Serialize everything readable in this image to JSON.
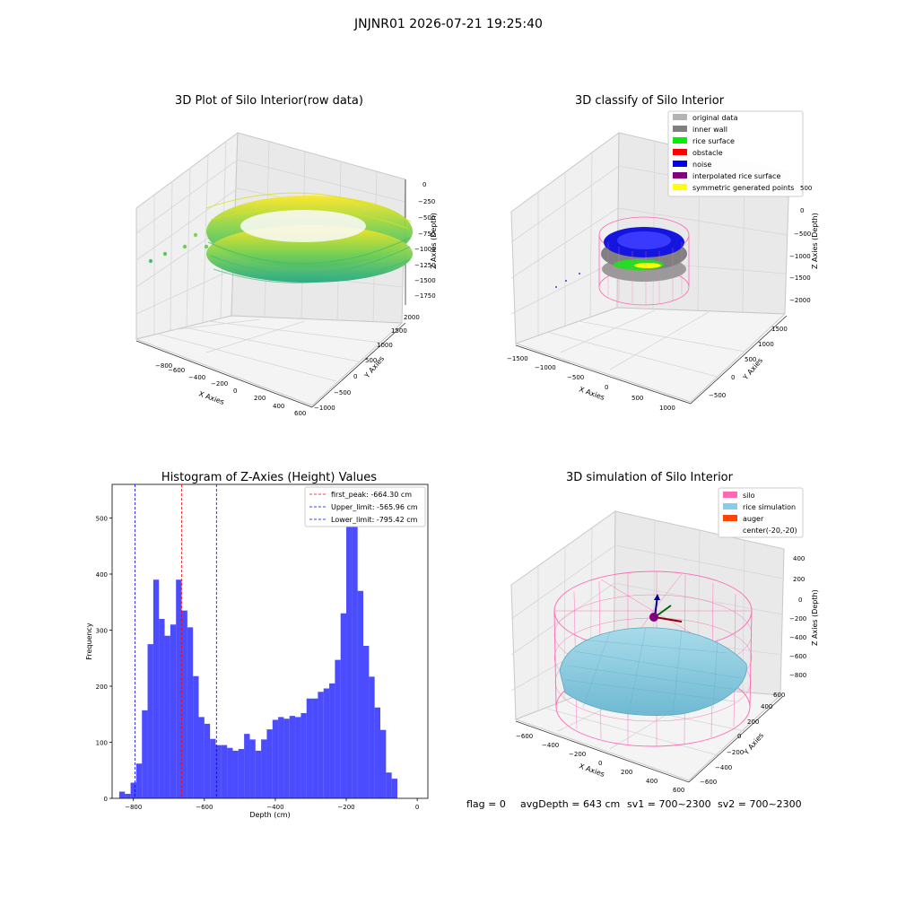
{
  "figure": {
    "suptitle": "JNJNR01 2026-07-21 19:25:40",
    "footer": {
      "flag": "flag = 0",
      "avg": "avgDepth = 643 cm",
      "sv1": "sv1 = 700~2300",
      "sv2": "sv2 = 700~2300"
    }
  },
  "chart_data": [
    {
      "type": "scatter",
      "projection": "3d",
      "title": "3D Plot of Silo Interior(row data)",
      "xlabel": "X Axies",
      "ylabel": "Y Axies",
      "zlabel": "Z Axies (Depth)",
      "xticks": [
        "−800",
        "−600",
        "−400",
        "−200",
        "0",
        "200",
        "400",
        "600"
      ],
      "yticks": [
        "−1000",
        "−500",
        "0",
        "500",
        "1000",
        "1500",
        "2000"
      ],
      "zticks": [
        "0",
        "−250",
        "−500",
        "−750",
        "−1000",
        "−1250",
        "−1500",
        "−1750"
      ],
      "colormap": [
        "#2ab07f",
        "#7ad151",
        "#c2df23",
        "#fde725"
      ],
      "description_values": {
        "z_range": [
          -1300,
          -250
        ]
      }
    },
    {
      "type": "scatter",
      "projection": "3d",
      "title": "3D classify of Silo Interior",
      "xlabel": "X Axies",
      "ylabel": "Y Axies",
      "zlabel": "Z Axies (Depth)",
      "xticks": [
        "−1500",
        "−1000",
        "−500",
        "0",
        "500",
        "1000"
      ],
      "yticks": [
        "−500",
        "0",
        "500",
        "1000",
        "1500"
      ],
      "zticks": [
        "500",
        "0",
        "−500",
        "−1000",
        "−1500",
        "−2000"
      ],
      "legend": [
        {
          "label": "original data",
          "color": "#b3b3b3"
        },
        {
          "label": "inner wall",
          "color": "#808080"
        },
        {
          "label": "rice surface",
          "color": "#00ee00"
        },
        {
          "label": "obstacle",
          "color": "#ff0000"
        },
        {
          "label": "noise",
          "color": "#0000ee"
        },
        {
          "label": "interpolated rice surface",
          "color": "#800080"
        },
        {
          "label": "symmetric generated points",
          "color": "#ffff00"
        }
      ],
      "legend_position": "top-right"
    },
    {
      "type": "bar",
      "title": "Histogram of Z-Axies (Height) Values",
      "xlabel": "Depth (cm)",
      "ylabel": "Frequency",
      "bin_width": 16,
      "bin_start": -840,
      "values": [
        12,
        8,
        28,
        62,
        157,
        275,
        390,
        320,
        290,
        310,
        390,
        335,
        305,
        218,
        145,
        133,
        106,
        95,
        95,
        90,
        85,
        88,
        115,
        105,
        85,
        105,
        123,
        140,
        145,
        142,
        147,
        145,
        152,
        178,
        178,
        190,
        196,
        205,
        247,
        330,
        485,
        535,
        370,
        272,
        217,
        162,
        122,
        46,
        35
      ],
      "color": "#0000ff",
      "alpha": 0.7,
      "xlim": [
        -860,
        30
      ],
      "ylim": [
        0,
        560
      ],
      "xticks": [
        -800,
        -600,
        -400,
        -200,
        0
      ],
      "xtick_labels": [
        "−800",
        "−600",
        "−400",
        "−200",
        "0"
      ],
      "yticks": [
        0,
        100,
        200,
        300,
        400,
        500
      ],
      "vlines": [
        {
          "x": -664.3,
          "color": "#ff0000",
          "label": "first_peak: -664.30 cm"
        },
        {
          "x": -565.96,
          "color": "#0000ff",
          "label": "Upper_limit: -565.96 cm"
        },
        {
          "x": -795.42,
          "color": "#0000ff",
          "label": "Lower_limit: -795.42 cm"
        }
      ],
      "legend_position": "top-right"
    },
    {
      "type": "surface",
      "projection": "3d",
      "title": "3D simulation of Silo Interior",
      "xlabel": "X Axies",
      "ylabel": "Y Axies",
      "zlabel": "Z Axies (Depth)",
      "xticks": [
        "−600",
        "−400",
        "−200",
        "0",
        "200",
        "400",
        "600"
      ],
      "yticks": [
        "−600",
        "−400",
        "−200",
        "0",
        "200",
        "400",
        "600"
      ],
      "zticks": [
        "400",
        "200",
        "0",
        "−200",
        "−400",
        "−600",
        "−800"
      ],
      "legend": [
        {
          "label": "silo",
          "color": "#ff69b4"
        },
        {
          "label": "rice simulation",
          "color": "#87ceeb"
        },
        {
          "label": "auger",
          "color": "#ff4500"
        },
        {
          "label": "center(-20,-20)",
          "color": ""
        }
      ],
      "legend_position": "top-right"
    }
  ]
}
